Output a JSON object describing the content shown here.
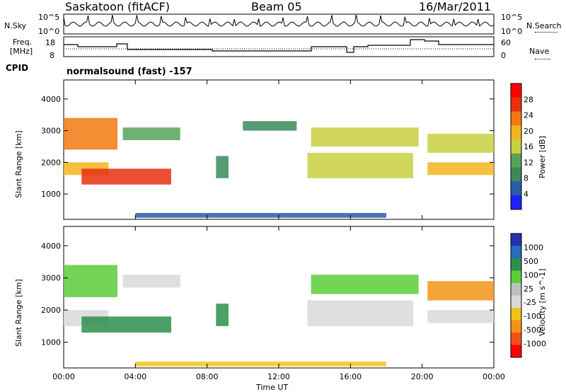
{
  "header": {
    "station": "Saskatoon (fitACF)",
    "beam": "Beam 05",
    "date": "16/Mar/2011"
  },
  "noise_panel": {
    "left_label": "N.Sky",
    "right_label": "N.Search",
    "scale_top": "10^5",
    "scale_bottom": "10^0"
  },
  "freq_panel": {
    "left_label_1": "Freq.",
    "left_label_2": "[MHz]",
    "right_label": "Nave",
    "left_ticks": [
      "18",
      "8"
    ],
    "right_ticks": [
      "60",
      "0"
    ]
  },
  "cpid": {
    "label": "CPID",
    "text": "normalsound (fast) -157"
  },
  "colors": {
    "power_scale": [
      "#1f1fff",
      "#2a5aa8",
      "#3a8a5a",
      "#55a35a",
      "#c8d040",
      "#f2b51c",
      "#f07a10",
      "#e8300e",
      "#ff0000"
    ],
    "velocity_scale": [
      "#2233aa",
      "#2a6cc0",
      "#2d8f4a",
      "#5ccc3a",
      "#bfbfbf",
      "#d9d9d9",
      "#f2c419",
      "#f29418",
      "#f0521a",
      "#ff0000"
    ]
  },
  "chart_data": [
    {
      "type": "heatmap",
      "title": "",
      "xlabel": "Time UT",
      "ylabel": "Slant Range [km]",
      "x_ticks": [
        "00:00",
        "04:00",
        "08:00",
        "12:00",
        "16:00",
        "20:00",
        "00:00"
      ],
      "y_ticks": [
        1000,
        2000,
        3000,
        4000
      ],
      "ylim": [
        200,
        4600
      ],
      "colorbar": {
        "label": "Power [dB]",
        "ticks": [
          "4",
          "8",
          "12",
          "16",
          "20",
          "24",
          "28"
        ]
      },
      "echo_regions": [
        {
          "t0": 0.0,
          "t1": 3.0,
          "r0": 2400,
          "r1": 3400,
          "level": 0.8
        },
        {
          "t0": 0.0,
          "t1": 2.5,
          "r0": 1600,
          "r1": 2000,
          "level": 0.6
        },
        {
          "t0": 1.0,
          "t1": 6.0,
          "r0": 1300,
          "r1": 1800,
          "level": 0.9
        },
        {
          "t0": 3.3,
          "t1": 6.5,
          "r0": 2700,
          "r1": 3100,
          "level": 0.4
        },
        {
          "t0": 8.5,
          "t1": 9.2,
          "r0": 1500,
          "r1": 2200,
          "level": 0.3
        },
        {
          "t0": 10.0,
          "t1": 13.0,
          "r0": 3000,
          "r1": 3300,
          "level": 0.2
        },
        {
          "t0": 13.6,
          "t1": 19.5,
          "r0": 1500,
          "r1": 2300,
          "level": 0.55
        },
        {
          "t0": 13.8,
          "t1": 19.8,
          "r0": 2500,
          "r1": 3100,
          "level": 0.45
        },
        {
          "t0": 20.3,
          "t1": 24.0,
          "r0": 1600,
          "r1": 2000,
          "level": 0.6
        },
        {
          "t0": 20.3,
          "t1": 24.0,
          "r0": 2300,
          "r1": 2900,
          "level": 0.55
        },
        {
          "t0": 4.0,
          "t1": 18.0,
          "r0": 250,
          "r1": 400,
          "level": 0.15
        }
      ]
    },
    {
      "type": "heatmap",
      "title": "",
      "xlabel": "Time UT",
      "ylabel": "Slant Range [km]",
      "x_ticks": [
        "00:00",
        "04:00",
        "08:00",
        "12:00",
        "16:00",
        "20:00",
        "00:00"
      ],
      "y_ticks": [
        1000,
        2000,
        3000,
        4000
      ],
      "ylim": [
        200,
        4600
      ],
      "colorbar": {
        "label": "Velocity [m s^-1]",
        "ticks": [
          "1000",
          "500",
          "100",
          "25",
          "-25",
          "-100",
          "-500",
          "-1000"
        ]
      },
      "echo_regions": [
        {
          "t0": 0.0,
          "t1": 3.0,
          "r0": 2400,
          "r1": 3400,
          "level": 0.3
        },
        {
          "t0": 0.0,
          "t1": 2.5,
          "r0": 1500,
          "r1": 2000,
          "level": 0.5
        },
        {
          "t0": 1.0,
          "t1": 6.0,
          "r0": 1300,
          "r1": 1800,
          "level": 0.25
        },
        {
          "t0": 3.3,
          "t1": 6.5,
          "r0": 2700,
          "r1": 3100,
          "level": 0.5
        },
        {
          "t0": 8.5,
          "t1": 9.2,
          "r0": 1500,
          "r1": 2200,
          "level": 0.25
        },
        {
          "t0": 13.6,
          "t1": 19.5,
          "r0": 1500,
          "r1": 2300,
          "level": 0.5
        },
        {
          "t0": 13.8,
          "t1": 19.8,
          "r0": 2500,
          "r1": 3100,
          "level": 0.35
        },
        {
          "t0": 20.3,
          "t1": 24.0,
          "r0": 1600,
          "r1": 2000,
          "level": 0.5
        },
        {
          "t0": 20.3,
          "t1": 24.0,
          "r0": 2300,
          "r1": 2900,
          "level": 0.75
        },
        {
          "t0": 4.0,
          "t1": 18.0,
          "r0": 250,
          "r1": 400,
          "level": 0.7
        }
      ]
    }
  ]
}
